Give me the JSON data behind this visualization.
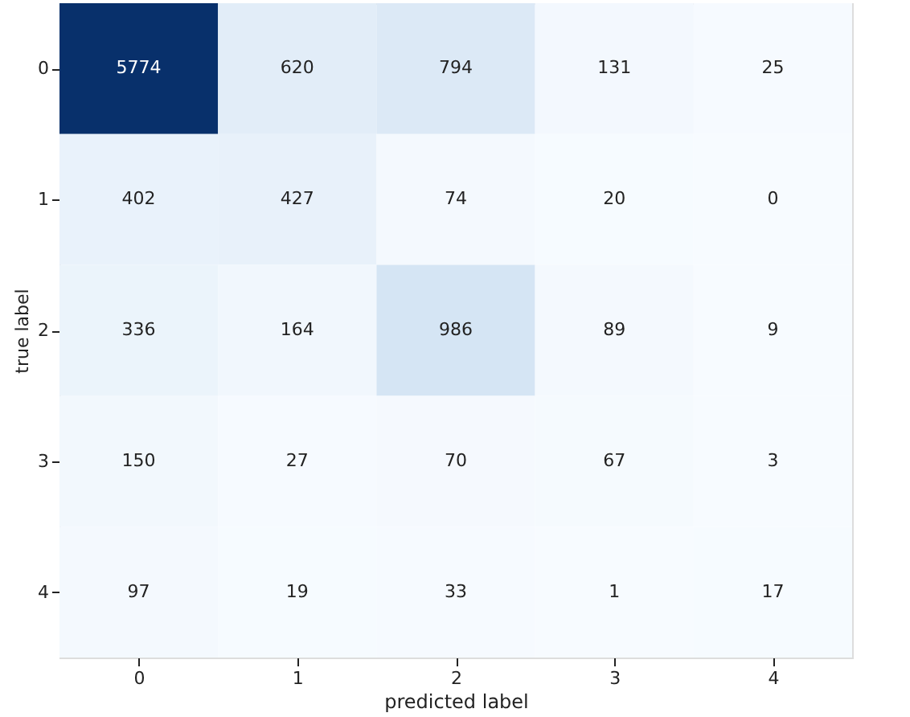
{
  "chart_data": {
    "type": "heatmap",
    "xlabel": "predicted label",
    "ylabel": "true label",
    "categories": [
      "0",
      "1",
      "2",
      "3",
      "4"
    ],
    "y_categories": [
      "0",
      "1",
      "2",
      "3",
      "4"
    ],
    "cells": [
      [
        5774,
        620,
        794,
        131,
        25
      ],
      [
        402,
        427,
        74,
        20,
        0
      ],
      [
        336,
        164,
        986,
        89,
        9
      ],
      [
        150,
        27,
        70,
        67,
        3
      ],
      [
        97,
        19,
        33,
        1,
        17
      ]
    ],
    "data_labels": true,
    "grid": false
  }
}
